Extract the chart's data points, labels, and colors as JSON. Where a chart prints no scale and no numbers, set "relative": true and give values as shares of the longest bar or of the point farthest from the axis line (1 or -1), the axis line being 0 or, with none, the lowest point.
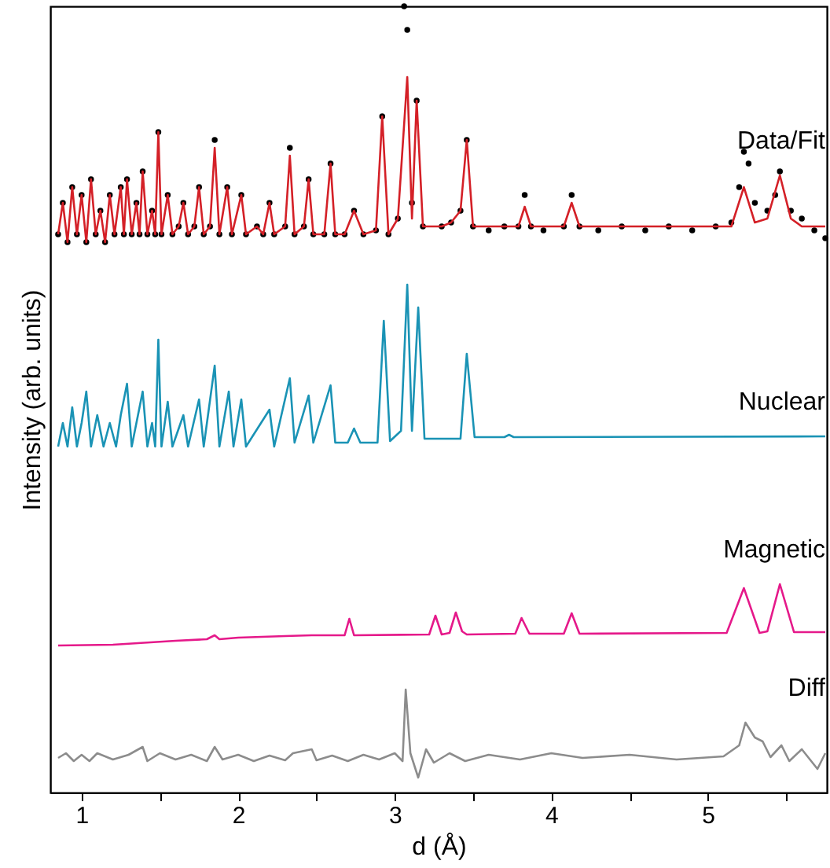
{
  "chart_data": {
    "type": "line",
    "xlabel": "d (Å)",
    "ylabel": "Intensity (arb. units)",
    "relative": true,
    "xlim": [
      0.8,
      5.76
    ],
    "xticks": [
      1,
      {
        "value": 1.5,
        "label": null
      },
      2,
      {
        "value": 2.5,
        "label": null
      },
      3,
      {
        "value": 3.5,
        "label": null
      },
      4,
      {
        "value": 4.5,
        "label": null
      },
      5,
      {
        "value": 5.5,
        "label": null
      }
    ],
    "grid": false,
    "series": [
      {
        "type": "scatter",
        "marker": "circle",
        "color": "#000000",
        "x": [
          0.85,
          0.88,
          0.91,
          0.94,
          0.97,
          1.0,
          1.03,
          1.06,
          1.09,
          1.12,
          1.15,
          1.18,
          1.21,
          1.25,
          1.27,
          1.29,
          1.32,
          1.35,
          1.37,
          1.39,
          1.42,
          1.45,
          1.47,
          1.49,
          1.51,
          1.55,
          1.58,
          1.62,
          1.65,
          1.68,
          1.72,
          1.75,
          1.78,
          1.82,
          1.85,
          1.88,
          1.93,
          1.96,
          2.02,
          2.05,
          2.12,
          2.16,
          2.2,
          2.23,
          2.3,
          2.33,
          2.36,
          2.42,
          2.45,
          2.48,
          2.55,
          2.59,
          2.62,
          2.68,
          2.74,
          2.8,
          2.88,
          2.92,
          2.96,
          3.02,
          3.06,
          3.08,
          3.11,
          3.14,
          3.18,
          3.3,
          3.36,
          3.42,
          3.46,
          3.5,
          3.6,
          3.7,
          3.79,
          3.83,
          3.87,
          3.95,
          4.08,
          4.13,
          4.18,
          4.3,
          4.45,
          4.6,
          4.75,
          4.9,
          5.05,
          5.15,
          5.2,
          5.23,
          5.26,
          5.3,
          5.38,
          5.43,
          5.46,
          5.53,
          5.6,
          5.68,
          5.75
        ],
        "values": [
          0.71,
          0.75,
          0.7,
          0.77,
          0.71,
          0.76,
          0.7,
          0.78,
          0.71,
          0.74,
          0.7,
          0.76,
          0.71,
          0.77,
          0.71,
          0.78,
          0.71,
          0.75,
          0.71,
          0.79,
          0.71,
          0.74,
          0.71,
          0.84,
          0.71,
          0.76,
          0.71,
          0.72,
          0.75,
          0.71,
          0.72,
          0.77,
          0.71,
          0.72,
          0.83,
          0.71,
          0.77,
          0.71,
          0.76,
          0.71,
          0.72,
          0.71,
          0.75,
          0.71,
          0.72,
          0.82,
          0.71,
          0.72,
          0.78,
          0.71,
          0.71,
          0.8,
          0.71,
          0.71,
          0.74,
          0.71,
          0.715,
          0.86,
          0.71,
          0.73,
          1.0,
          0.97,
          0.75,
          0.88,
          0.72,
          0.72,
          0.725,
          0.74,
          0.83,
          0.72,
          0.715,
          0.72,
          0.72,
          0.76,
          0.72,
          0.715,
          0.72,
          0.76,
          0.72,
          0.715,
          0.72,
          0.715,
          0.72,
          0.715,
          0.72,
          0.725,
          0.77,
          0.815,
          0.8,
          0.75,
          0.74,
          0.76,
          0.79,
          0.74,
          0.73,
          0.715,
          0.705
        ]
      },
      {
        "name": "Data/Fit",
        "type": "line",
        "color": "#d42027",
        "x": [
          0.85,
          0.88,
          0.91,
          0.94,
          0.97,
          1.0,
          1.03,
          1.06,
          1.09,
          1.12,
          1.15,
          1.18,
          1.21,
          1.25,
          1.27,
          1.29,
          1.32,
          1.35,
          1.37,
          1.39,
          1.42,
          1.45,
          1.47,
          1.49,
          1.51,
          1.55,
          1.58,
          1.62,
          1.65,
          1.68,
          1.72,
          1.75,
          1.78,
          1.82,
          1.85,
          1.88,
          1.93,
          1.96,
          2.02,
          2.05,
          2.12,
          2.16,
          2.2,
          2.23,
          2.3,
          2.33,
          2.36,
          2.42,
          2.45,
          2.48,
          2.55,
          2.59,
          2.62,
          2.68,
          2.74,
          2.8,
          2.88,
          2.92,
          2.96,
          3.02,
          3.08,
          3.11,
          3.14,
          3.18,
          3.3,
          3.36,
          3.42,
          3.46,
          3.5,
          3.7,
          3.79,
          3.83,
          3.87,
          4.08,
          4.13,
          4.18,
          4.6,
          5.15,
          5.23,
          5.3,
          5.38,
          5.46,
          5.53,
          5.6,
          5.75
        ],
        "values": [
          0.71,
          0.75,
          0.7,
          0.77,
          0.71,
          0.76,
          0.7,
          0.78,
          0.71,
          0.74,
          0.7,
          0.76,
          0.71,
          0.77,
          0.71,
          0.78,
          0.71,
          0.75,
          0.71,
          0.79,
          0.71,
          0.74,
          0.71,
          0.84,
          0.71,
          0.76,
          0.71,
          0.72,
          0.75,
          0.71,
          0.72,
          0.77,
          0.71,
          0.72,
          0.82,
          0.71,
          0.77,
          0.71,
          0.76,
          0.71,
          0.72,
          0.71,
          0.75,
          0.71,
          0.72,
          0.81,
          0.71,
          0.72,
          0.78,
          0.71,
          0.71,
          0.8,
          0.71,
          0.71,
          0.74,
          0.71,
          0.715,
          0.86,
          0.71,
          0.73,
          0.91,
          0.73,
          0.88,
          0.72,
          0.72,
          0.725,
          0.74,
          0.83,
          0.72,
          0.72,
          0.72,
          0.745,
          0.72,
          0.72,
          0.75,
          0.72,
          0.72,
          0.72,
          0.77,
          0.725,
          0.73,
          0.785,
          0.73,
          0.72,
          0.72
        ]
      },
      {
        "name": "Nuclear",
        "type": "line",
        "color": "#1a93b5",
        "x": [
          0.85,
          0.88,
          0.91,
          0.94,
          0.97,
          1.0,
          1.03,
          1.06,
          1.1,
          1.14,
          1.18,
          1.22,
          1.25,
          1.29,
          1.32,
          1.35,
          1.39,
          1.42,
          1.45,
          1.47,
          1.49,
          1.51,
          1.55,
          1.58,
          1.65,
          1.68,
          1.75,
          1.78,
          1.85,
          1.88,
          1.94,
          1.97,
          2.02,
          2.05,
          2.2,
          2.23,
          2.33,
          2.36,
          2.45,
          2.48,
          2.59,
          2.62,
          2.7,
          2.74,
          2.78,
          2.89,
          2.93,
          2.97,
          3.04,
          3.08,
          3.11,
          3.15,
          3.19,
          3.42,
          3.46,
          3.51,
          3.7,
          3.73,
          3.76,
          5.75
        ],
        "values": [
          0.44,
          0.47,
          0.44,
          0.49,
          0.44,
          0.47,
          0.51,
          0.44,
          0.48,
          0.44,
          0.47,
          0.44,
          0.48,
          0.52,
          0.44,
          0.47,
          0.51,
          0.44,
          0.47,
          0.44,
          0.576,
          0.44,
          0.497,
          0.44,
          0.48,
          0.44,
          0.5,
          0.44,
          0.543,
          0.44,
          0.51,
          0.44,
          0.5,
          0.44,
          0.487,
          0.44,
          0.527,
          0.445,
          0.505,
          0.445,
          0.518,
          0.445,
          0.445,
          0.463,
          0.445,
          0.445,
          0.6,
          0.447,
          0.46,
          0.646,
          0.46,
          0.617,
          0.45,
          0.45,
          0.558,
          0.452,
          0.452,
          0.455,
          0.452,
          0.453
        ]
      },
      {
        "name": "Magnetic",
        "type": "line",
        "color": "#e5198a",
        "x": [
          0.85,
          1.2,
          1.6,
          1.8,
          1.85,
          1.88,
          2.0,
          2.3,
          2.47,
          2.5,
          2.68,
          2.71,
          2.74,
          3.22,
          3.26,
          3.3,
          3.35,
          3.39,
          3.43,
          3.46,
          3.77,
          3.81,
          3.86,
          4.08,
          4.13,
          4.18,
          5.12,
          5.23,
          5.33,
          5.38,
          5.46,
          5.55,
          5.75
        ],
        "values": [
          0.187,
          0.188,
          0.193,
          0.195,
          0.2,
          0.195,
          0.197,
          0.199,
          0.2,
          0.2,
          0.2,
          0.221,
          0.2,
          0.201,
          0.225,
          0.201,
          0.203,
          0.229,
          0.205,
          0.201,
          0.202,
          0.222,
          0.202,
          0.202,
          0.228,
          0.202,
          0.203,
          0.26,
          0.203,
          0.205,
          0.265,
          0.204,
          0.204
        ]
      },
      {
        "name": "Diff",
        "type": "line",
        "color": "#8c8c8c",
        "x": [
          0.85,
          0.9,
          0.95,
          1.0,
          1.05,
          1.1,
          1.2,
          1.3,
          1.39,
          1.42,
          1.5,
          1.6,
          1.7,
          1.8,
          1.85,
          1.9,
          2.0,
          2.1,
          2.2,
          2.3,
          2.35,
          2.47,
          2.5,
          2.6,
          2.7,
          2.8,
          2.9,
          3.0,
          3.05,
          3.07,
          3.1,
          3.15,
          3.2,
          3.25,
          3.35,
          3.45,
          3.6,
          3.8,
          4.0,
          4.2,
          4.5,
          4.8,
          5.1,
          5.2,
          5.24,
          5.3,
          5.35,
          5.4,
          5.47,
          5.52,
          5.6,
          5.7,
          5.75
        ],
        "values": [
          0.044,
          0.05,
          0.04,
          0.048,
          0.04,
          0.05,
          0.042,
          0.048,
          0.058,
          0.04,
          0.05,
          0.042,
          0.048,
          0.04,
          0.058,
          0.042,
          0.048,
          0.04,
          0.047,
          0.041,
          0.05,
          0.055,
          0.041,
          0.047,
          0.04,
          0.048,
          0.042,
          0.05,
          0.04,
          0.131,
          0.05,
          0.019,
          0.055,
          0.038,
          0.05,
          0.04,
          0.048,
          0.042,
          0.05,
          0.044,
          0.048,
          0.042,
          0.046,
          0.06,
          0.089,
          0.07,
          0.065,
          0.045,
          0.06,
          0.04,
          0.055,
          0.03,
          0.05
        ]
      }
    ]
  }
}
